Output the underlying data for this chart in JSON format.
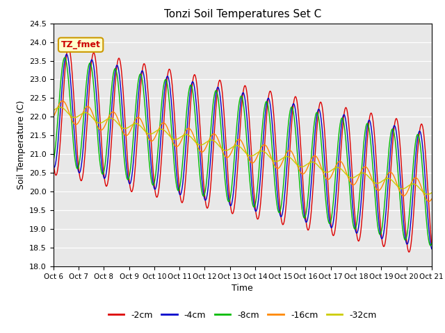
{
  "title": "Tonzi Soil Temperatures Set C",
  "xlabel": "Time",
  "ylabel": "Soil Temperature (C)",
  "ylim": [
    18.0,
    24.5
  ],
  "yticks": [
    18.0,
    18.5,
    19.0,
    19.5,
    20.0,
    20.5,
    21.0,
    21.5,
    22.0,
    22.5,
    23.0,
    23.5,
    24.0,
    24.5
  ],
  "plot_bg_color": "#e8e8e8",
  "fig_bg_color": "#ffffff",
  "legend_label": "TZ_fmet",
  "legend_bg": "#ffffcc",
  "legend_border": "#cc9900",
  "series_colors": {
    "-2cm": "#dd0000",
    "-4cm": "#0000cc",
    "-8cm": "#00bb00",
    "-16cm": "#ff8800",
    "-32cm": "#cccc00"
  },
  "series_linewidth": 1.0,
  "n_points": 720,
  "t_start": 6.0,
  "t_end": 21.0,
  "xtick_labels": [
    "Oct 6",
    "Oct 7",
    "Oct 8",
    "Oct 9",
    "Oct 10",
    "Oct 11",
    "Oct 12",
    "Oct 13",
    "Oct 14",
    "Oct 15",
    "Oct 16",
    "Oct 17",
    "Oct 18",
    "Oct 19",
    "Oct 20",
    "Oct 21"
  ],
  "xtick_positions": [
    6,
    7,
    8,
    9,
    10,
    11,
    12,
    13,
    14,
    15,
    16,
    17,
    18,
    19,
    20,
    21
  ]
}
